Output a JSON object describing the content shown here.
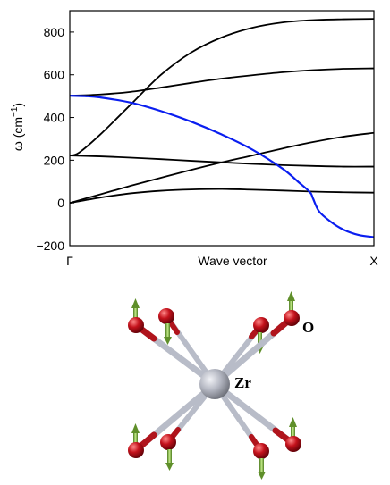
{
  "chart_data": {
    "type": "line",
    "xlabel": "Wave vector",
    "ylabel": "ω (cm",
    "ylabel_sup": "−1",
    "ylabel_close": ")",
    "x_ticks": [
      "Γ",
      "X"
    ],
    "x_range": [
      0,
      1
    ],
    "ylim": [
      -200,
      900
    ],
    "y_ticks": [
      -200,
      0,
      200,
      400,
      600,
      800
    ],
    "y_tick_labels": [
      "−200",
      "0",
      "200",
      "400",
      "600",
      "800"
    ],
    "grid": false,
    "legend": "none",
    "series": [
      {
        "color": "#000000",
        "x": [
          0,
          0.1,
          0.2,
          0.3,
          0.4,
          0.5,
          0.6,
          0.7,
          0.8,
          0.9,
          1.0
        ],
        "values": [
          0,
          40,
          80,
          118,
          155,
          190,
          222,
          255,
          285,
          310,
          328
        ]
      },
      {
        "color": "#000000",
        "x": [
          0,
          0.1,
          0.2,
          0.3,
          0.4,
          0.5,
          0.6,
          0.7,
          0.8,
          0.9,
          1.0
        ],
        "values": [
          0,
          25,
          45,
          57,
          63,
          65,
          62,
          58,
          53,
          50,
          48
        ]
      },
      {
        "color": "#000000",
        "x": [
          0,
          0.1,
          0.2,
          0.3,
          0.4,
          0.5,
          0.6,
          0.7,
          0.8,
          0.9,
          1.0
        ],
        "values": [
          222,
          218,
          212,
          205,
          197,
          190,
          183,
          177,
          173,
          170,
          170
        ]
      },
      {
        "color": "#000000",
        "x": [
          0,
          0.03,
          0.1,
          0.2,
          0.3,
          0.4,
          0.5,
          0.6,
          0.7,
          0.8,
          0.9,
          1.0
        ],
        "values": [
          222,
          235,
          320,
          460,
          600,
          705,
          775,
          820,
          845,
          856,
          860,
          862
        ]
      },
      {
        "color": "#000000",
        "x": [
          0,
          0.1,
          0.2,
          0.3,
          0.4,
          0.5,
          0.6,
          0.7,
          0.8,
          0.9,
          1.0
        ],
        "values": [
          502,
          508,
          520,
          540,
          562,
          582,
          598,
          612,
          622,
          628,
          630
        ]
      },
      {
        "color": "#0a1ef0",
        "x": [
          0,
          0.05,
          0.1,
          0.2,
          0.3,
          0.4,
          0.5,
          0.6,
          0.7,
          0.75,
          0.79,
          0.8,
          0.82,
          0.86,
          0.9,
          0.95,
          1.0
        ],
        "values": [
          502,
          500,
          494,
          470,
          430,
          380,
          320,
          250,
          160,
          100,
          50,
          20,
          -40,
          -90,
          -125,
          -150,
          -160
        ]
      }
    ]
  },
  "structure": {
    "center_label": "Zr",
    "ligand_label": "O",
    "colors": {
      "center": "#a0a3ad",
      "ligand": "#b0141c",
      "bond": "#b8bcc8",
      "arrow": "#7fbf3f"
    }
  }
}
